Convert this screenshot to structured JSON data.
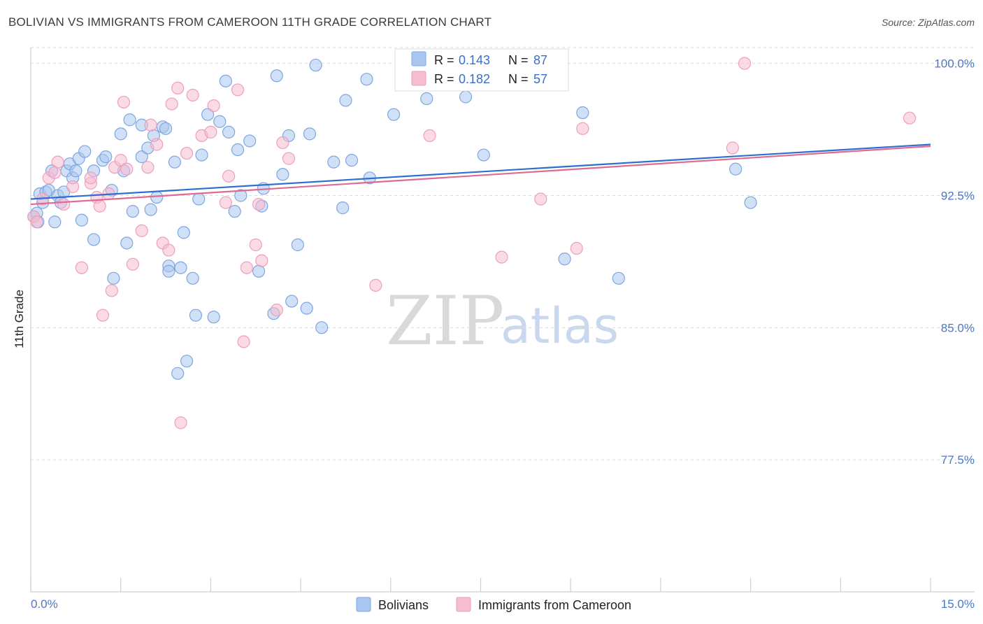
{
  "header": {
    "title": "BOLIVIAN VS IMMIGRANTS FROM CAMEROON 11TH GRADE CORRELATION CHART",
    "source": "Source: ZipAtlas.com"
  },
  "watermark": {
    "part1": "ZIP",
    "part2": "atlas"
  },
  "colors": {
    "blue_fill": "#a9c6f0",
    "blue_stroke": "#7ea6e0",
    "blue_line": "#2f6fd0",
    "pink_fill": "#f6bcd0",
    "pink_stroke": "#ee9fbb",
    "pink_line": "#e06a93",
    "axis_text": "#4a78c7",
    "grid": "#dddddd"
  },
  "legend": {
    "rows": [
      {
        "r_label": "R = ",
        "r_value": "0.143",
        "n_label": "N = ",
        "n_value": "87"
      },
      {
        "r_label": "R = ",
        "r_value": "0.182",
        "n_label": "N = ",
        "n_value": "57"
      }
    ]
  },
  "bottom_legend": {
    "items": [
      "Bolivians",
      "Immigrants from Cameroon"
    ]
  },
  "chart_data": {
    "type": "scatter",
    "title": "BOLIVIAN VS IMMIGRANTS FROM CAMEROON 11TH GRADE CORRELATION CHART",
    "xlabel": "",
    "ylabel": "11th Grade",
    "xlim": [
      0,
      15
    ],
    "ylim": [
      70.0,
      100.9
    ],
    "x_tick_labels": [
      "0.0%",
      "15.0%"
    ],
    "y_ticks": [
      77.5,
      85.0,
      92.5,
      100.0
    ],
    "y_tick_labels": [
      "77.5%",
      "85.0%",
      "92.5%",
      "100.0%"
    ],
    "grid": true,
    "legend_position": "top-center",
    "series": [
      {
        "name": "Bolivians",
        "r": 0.143,
        "n": 87,
        "trend": {
          "x": [
            0,
            15
          ],
          "y": [
            92.3,
            95.4
          ]
        },
        "points": [
          [
            0.05,
            91.3
          ],
          [
            0.1,
            91.5
          ],
          [
            0.12,
            91.0
          ],
          [
            0.15,
            92.6
          ],
          [
            0.2,
            92.1
          ],
          [
            0.25,
            92.7
          ],
          [
            0.3,
            92.8
          ],
          [
            0.35,
            93.9
          ],
          [
            0.4,
            91.0
          ],
          [
            0.45,
            92.5
          ],
          [
            0.5,
            92.1
          ],
          [
            0.55,
            92.7
          ],
          [
            0.6,
            93.9
          ],
          [
            0.65,
            94.3
          ],
          [
            0.7,
            93.5
          ],
          [
            0.75,
            93.9
          ],
          [
            0.8,
            94.6
          ],
          [
            0.85,
            91.1
          ],
          [
            0.9,
            95.0
          ],
          [
            1.05,
            93.9
          ],
          [
            1.05,
            90.0
          ],
          [
            1.2,
            94.5
          ],
          [
            1.25,
            94.7
          ],
          [
            1.35,
            92.8
          ],
          [
            1.38,
            87.8
          ],
          [
            1.5,
            96.0
          ],
          [
            1.55,
            93.9
          ],
          [
            1.6,
            89.8
          ],
          [
            1.65,
            96.8
          ],
          [
            1.7,
            91.6
          ],
          [
            1.85,
            96.5
          ],
          [
            1.85,
            94.7
          ],
          [
            1.95,
            95.2
          ],
          [
            2.0,
            91.7
          ],
          [
            2.05,
            95.9
          ],
          [
            2.1,
            92.4
          ],
          [
            2.2,
            96.4
          ],
          [
            2.25,
            96.3
          ],
          [
            2.3,
            88.5
          ],
          [
            2.3,
            88.2
          ],
          [
            2.4,
            94.4
          ],
          [
            2.45,
            82.4
          ],
          [
            2.5,
            88.4
          ],
          [
            2.55,
            90.4
          ],
          [
            2.6,
            83.1
          ],
          [
            2.7,
            87.8
          ],
          [
            2.75,
            85.7
          ],
          [
            2.8,
            92.3
          ],
          [
            2.85,
            94.8
          ],
          [
            2.95,
            97.1
          ],
          [
            3.05,
            85.6
          ],
          [
            3.15,
            96.7
          ],
          [
            3.25,
            99.0
          ],
          [
            3.3,
            96.1
          ],
          [
            3.4,
            91.6
          ],
          [
            3.45,
            95.1
          ],
          [
            3.5,
            92.5
          ],
          [
            3.65,
            95.6
          ],
          [
            3.8,
            88.2
          ],
          [
            3.85,
            91.9
          ],
          [
            3.88,
            92.9
          ],
          [
            4.05,
            85.8
          ],
          [
            4.1,
            99.3
          ],
          [
            4.2,
            93.7
          ],
          [
            4.3,
            95.9
          ],
          [
            4.35,
            86.5
          ],
          [
            4.45,
            89.7
          ],
          [
            4.6,
            86.1
          ],
          [
            4.65,
            96.0
          ],
          [
            4.75,
            99.9
          ],
          [
            4.85,
            85.0
          ],
          [
            5.05,
            94.4
          ],
          [
            5.2,
            91.8
          ],
          [
            5.25,
            97.9
          ],
          [
            5.35,
            94.5
          ],
          [
            5.6,
            99.1
          ],
          [
            5.65,
            93.5
          ],
          [
            6.05,
            97.1
          ],
          [
            6.55,
            99.9
          ],
          [
            6.6,
            98.0
          ],
          [
            7.25,
            98.1
          ],
          [
            7.55,
            94.8
          ],
          [
            8.4,
            100.0
          ],
          [
            8.9,
            88.9
          ],
          [
            9.2,
            97.2
          ],
          [
            9.8,
            87.8
          ],
          [
            11.75,
            94.0
          ],
          [
            12.0,
            92.1
          ]
        ]
      },
      {
        "name": "Immigrants from Cameroon",
        "r": 0.182,
        "n": 57,
        "trend": {
          "x": [
            0,
            15
          ],
          "y": [
            92.0,
            95.3
          ]
        },
        "points": [
          [
            0.05,
            91.3
          ],
          [
            0.1,
            91.0
          ],
          [
            0.2,
            92.3
          ],
          [
            0.3,
            93.5
          ],
          [
            0.4,
            93.8
          ],
          [
            0.45,
            94.4
          ],
          [
            0.55,
            92.0
          ],
          [
            0.7,
            93.0
          ],
          [
            0.85,
            88.4
          ],
          [
            1.0,
            93.2
          ],
          [
            1.0,
            93.5
          ],
          [
            1.1,
            92.4
          ],
          [
            1.15,
            91.9
          ],
          [
            1.2,
            85.7
          ],
          [
            1.3,
            92.6
          ],
          [
            1.35,
            87.1
          ],
          [
            1.4,
            94.1
          ],
          [
            1.5,
            94.5
          ],
          [
            1.55,
            97.8
          ],
          [
            1.6,
            94.0
          ],
          [
            1.7,
            88.6
          ],
          [
            1.85,
            90.5
          ],
          [
            1.95,
            94.1
          ],
          [
            2.0,
            96.5
          ],
          [
            2.1,
            95.4
          ],
          [
            2.2,
            89.8
          ],
          [
            2.3,
            89.4
          ],
          [
            2.35,
            97.7
          ],
          [
            2.45,
            98.6
          ],
          [
            2.5,
            79.6
          ],
          [
            2.6,
            94.9
          ],
          [
            2.7,
            98.2
          ],
          [
            2.85,
            95.9
          ],
          [
            3.0,
            96.1
          ],
          [
            3.05,
            97.6
          ],
          [
            3.25,
            92.1
          ],
          [
            3.3,
            93.6
          ],
          [
            3.45,
            98.5
          ],
          [
            3.55,
            84.2
          ],
          [
            3.6,
            88.4
          ],
          [
            3.75,
            89.7
          ],
          [
            3.8,
            92.0
          ],
          [
            3.85,
            88.8
          ],
          [
            4.1,
            86.0
          ],
          [
            4.2,
            95.5
          ],
          [
            4.3,
            94.6
          ],
          [
            5.75,
            87.4
          ],
          [
            6.65,
            95.9
          ],
          [
            7.85,
            89.0
          ],
          [
            8.5,
            92.3
          ],
          [
            9.1,
            89.5
          ],
          [
            9.2,
            96.3
          ],
          [
            11.7,
            95.2
          ],
          [
            11.9,
            100.0
          ],
          [
            14.65,
            96.9
          ]
        ]
      }
    ]
  }
}
